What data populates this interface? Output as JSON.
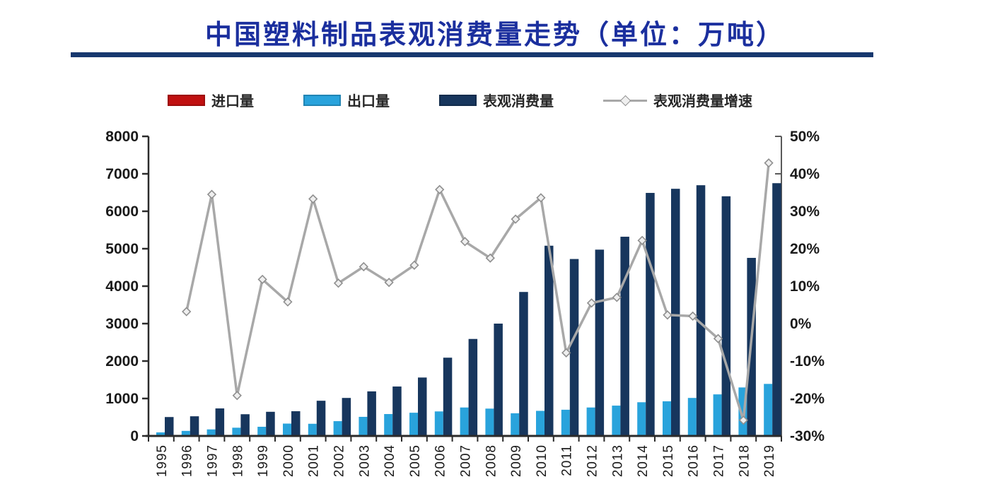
{
  "title": "中国塑料制品表观消费量走势（单位：万吨）",
  "legend": [
    {
      "label": "进口量",
      "type": "bar",
      "color": "#c01010"
    },
    {
      "label": "出口量",
      "type": "bar",
      "color": "#29a3dc"
    },
    {
      "label": "表观消费量",
      "type": "bar",
      "color": "#17365d"
    },
    {
      "label": "表观消费量增速",
      "type": "line",
      "color": "#a8a8a8"
    }
  ],
  "chart_data": {
    "type": "bar",
    "subtype": "bar-line-combo",
    "title": "中国塑料制品表观消费量走势（单位：万吨）",
    "categories": [
      "1995",
      "1996",
      "1997",
      "1998",
      "1999",
      "2000",
      "2001",
      "2002",
      "2003",
      "2004",
      "2005",
      "2006",
      "2007",
      "2008",
      "2009",
      "2010",
      "2011",
      "2012",
      "2013",
      "2014",
      "2015",
      "2016",
      "2017",
      "2018",
      "2019"
    ],
    "series": [
      {
        "name": "进口量",
        "chart": "bar",
        "axis": "left",
        "color": "#c01010",
        "values": [
          20,
          20,
          20,
          20,
          20,
          20,
          20,
          20,
          20,
          20,
          20,
          20,
          20,
          20,
          20,
          20,
          20,
          20,
          20,
          20,
          20,
          20,
          20,
          20,
          20
        ]
      },
      {
        "name": "出口量",
        "chart": "bar",
        "axis": "left",
        "color": "#29a3dc",
        "values": [
          95,
          135,
          175,
          220,
          245,
          330,
          325,
          395,
          510,
          585,
          620,
          655,
          760,
          730,
          605,
          670,
          700,
          760,
          810,
          900,
          925,
          1015,
          1110,
          1295,
          1390
        ]
      },
      {
        "name": "表观消费量",
        "chart": "bar",
        "axis": "left",
        "color": "#17365d",
        "values": [
          505,
          525,
          735,
          580,
          645,
          660,
          940,
          1015,
          1190,
          1320,
          1560,
          2090,
          2590,
          3000,
          3845,
          5080,
          4725,
          4975,
          5320,
          6490,
          6600,
          6695,
          6400,
          4755,
          6750
        ]
      },
      {
        "name": "表观消费量增速",
        "chart": "line",
        "axis": "right",
        "color": "#a8a8a8",
        "values": [
          null,
          3.2,
          34.5,
          -19.2,
          11.8,
          5.8,
          33.3,
          10.8,
          15.2,
          11.0,
          15.6,
          35.8,
          21.9,
          17.5,
          27.9,
          33.6,
          -7.8,
          5.5,
          7.0,
          22.2,
          2.3,
          2.0,
          -4.0,
          -25.8,
          42.9
        ]
      }
    ],
    "left_axis": {
      "min": 0,
      "max": 8000,
      "step": 1000,
      "tick_labels": [
        "0",
        "1000",
        "2000",
        "3000",
        "4000",
        "5000",
        "6000",
        "7000",
        "8000"
      ]
    },
    "right_axis": {
      "min": -30,
      "max": 50,
      "step": 10,
      "unit": "%",
      "tick_labels": [
        "50%",
        "40%",
        "30%",
        "20%",
        "10%",
        "0%",
        "-10%",
        "-20%",
        "-30%"
      ]
    },
    "grid": false,
    "legend_position": "top"
  }
}
